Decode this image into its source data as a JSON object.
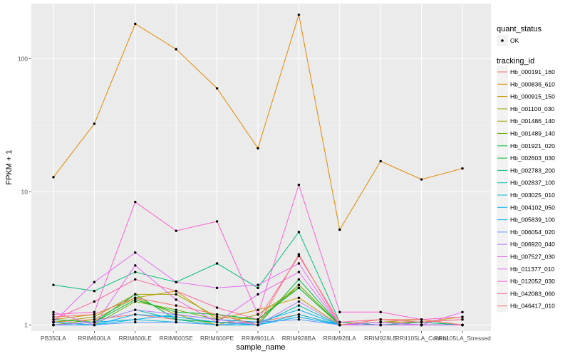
{
  "chart_data": {
    "type": "line",
    "xlabel": "sample_name",
    "ylabel": "FPKM + 1",
    "y_scale": "log10",
    "ylim": [
      0.9,
      260
    ],
    "y_ticks": [
      1,
      10,
      100
    ],
    "y_tick_labels": [
      "1",
      "10",
      "100"
    ],
    "categories": [
      "PB350LA",
      "RRIM600LA",
      "RRIM600LE",
      "RRIM600SE",
      "RRIM600PE",
      "RRIM901LA",
      "RRIM928BA",
      "RRIM928LA",
      "RRIM928LE",
      "RRII105LA_Control",
      "RRII105LA_Stressed"
    ],
    "legend_shape": {
      "title": "quant_status",
      "items": [
        {
          "label": "OK"
        }
      ]
    },
    "legend_color_title": "tracking_id",
    "series": [
      {
        "name": "Hb_000191_160",
        "color": "#F8766D",
        "values": [
          1.05,
          1.1,
          1.2,
          1.1,
          1.05,
          1.05,
          1.2,
          1.0,
          1.05,
          1.0,
          1.0
        ]
      },
      {
        "name": "Hb_000836_610",
        "color": "#E58700",
        "values": [
          12.9,
          32.5,
          183,
          118,
          60,
          21.3,
          214,
          5.2,
          17,
          12.4,
          15
        ]
      },
      {
        "name": "Hb_000915_150",
        "color": "#C99800",
        "values": [
          1.1,
          1.2,
          1.6,
          1.8,
          1.1,
          1.3,
          1.6,
          1.0,
          1.05,
          1.05,
          1.15
        ]
      },
      {
        "name": "Hb_001100_030",
        "color": "#A3A500",
        "values": [
          1.05,
          1.15,
          1.7,
          1.7,
          1.15,
          1.1,
          2.0,
          1.0,
          1.1,
          1.05,
          1.1
        ]
      },
      {
        "name": "Hb_001486_140",
        "color": "#A3A500",
        "values": [
          1.0,
          1.1,
          1.6,
          1.2,
          1.0,
          1.2,
          1.9,
          1.0,
          1.05,
          1.1,
          1.0
        ]
      },
      {
        "name": "Hb_001489_140",
        "color": "#6BB100",
        "values": [
          1.05,
          1.0,
          1.5,
          1.3,
          1.1,
          1.05,
          2.0,
          1.0,
          1.0,
          1.0,
          1.0
        ]
      },
      {
        "name": "Hb_001921_020",
        "color": "#00BA38",
        "values": [
          1.1,
          1.05,
          1.55,
          1.25,
          1.2,
          1.1,
          1.9,
          1.0,
          1.0,
          1.05,
          1.0
        ]
      },
      {
        "name": "Hb_002603_030",
        "color": "#00BA38",
        "values": [
          1.0,
          1.05,
          1.7,
          1.1,
          1.05,
          1.0,
          2.2,
          1.0,
          1.0,
          1.0,
          1.0
        ]
      },
      {
        "name": "Hb_002783_200",
        "color": "#00BF7D",
        "values": [
          2.0,
          1.8,
          2.5,
          2.1,
          2.9,
          1.9,
          5.0,
          1.05,
          1.0,
          1.05,
          1.0
        ]
      },
      {
        "name": "Hb_002837_100",
        "color": "#00C0AF",
        "values": [
          1.0,
          1.05,
          1.3,
          1.1,
          1.0,
          1.0,
          1.4,
          1.0,
          1.0,
          1.0,
          1.0
        ]
      },
      {
        "name": "Hb_003025_010",
        "color": "#00BCD8",
        "values": [
          1.0,
          1.0,
          1.1,
          1.05,
          1.0,
          1.0,
          1.2,
          1.0,
          1.0,
          1.0,
          1.0
        ]
      },
      {
        "name": "Hb_004102_050",
        "color": "#00B0F6",
        "values": [
          1.05,
          1.0,
          1.2,
          1.15,
          1.05,
          1.0,
          1.15,
          1.0,
          1.05,
          1.0,
          1.0
        ]
      },
      {
        "name": "Hb_005839_100",
        "color": "#00B0F6",
        "values": [
          1.0,
          1.05,
          1.1,
          1.2,
          1.1,
          1.05,
          1.3,
          1.0,
          1.0,
          1.0,
          1.0
        ]
      },
      {
        "name": "Hb_006054_020",
        "color": "#619CFF",
        "values": [
          1.0,
          1.0,
          1.05,
          1.05,
          1.0,
          1.05,
          1.1,
          1.0,
          1.0,
          1.0,
          1.0
        ]
      },
      {
        "name": "Hb_006920_040",
        "color": "#B983FF",
        "values": [
          1.0,
          1.05,
          1.3,
          1.2,
          1.1,
          1.0,
          1.5,
          1.0,
          1.0,
          1.0,
          1.0
        ]
      },
      {
        "name": "Hb_007527_030",
        "color": "#E76BF3",
        "values": [
          1.05,
          2.1,
          3.5,
          2.1,
          1.9,
          2.0,
          2.9,
          1.0,
          1.0,
          1.0,
          1.0
        ]
      },
      {
        "name": "Hb_011377_010",
        "color": "#E76BF3",
        "values": [
          1.25,
          1.0,
          2.8,
          1.55,
          1.05,
          1.7,
          2.5,
          1.0,
          1.05,
          1.0,
          1.25
        ]
      },
      {
        "name": "Hb_012052_030",
        "color": "#FD61D1",
        "values": [
          1.2,
          1.25,
          8.4,
          5.1,
          6.0,
          1.2,
          11.3,
          1.25,
          1.25,
          1.1,
          1.15
        ]
      },
      {
        "name": "Hb_042083_060",
        "color": "#FF67A4",
        "values": [
          1.1,
          1.5,
          2.2,
          1.8,
          1.35,
          1.1,
          3.3,
          1.05,
          1.1,
          1.05,
          1.1
        ]
      },
      {
        "name": "Hb_046417_010",
        "color": "#F8766D",
        "values": [
          1.15,
          1.2,
          1.6,
          1.4,
          1.2,
          1.0,
          3.4,
          1.0,
          1.1,
          1.1,
          1.0
        ]
      }
    ]
  }
}
